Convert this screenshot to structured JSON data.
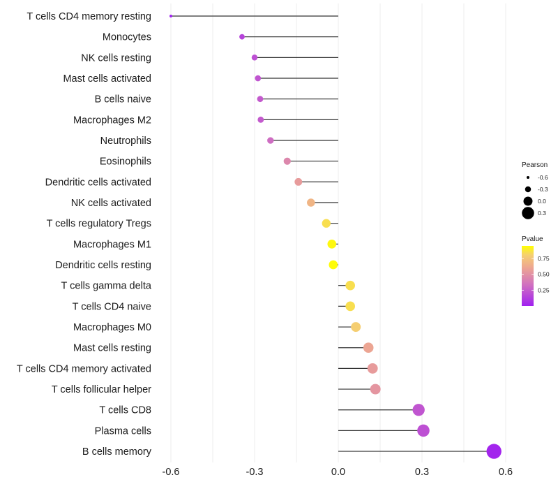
{
  "chart_data": {
    "type": "lollipop",
    "title": "",
    "xlabel": "",
    "ylabel": "",
    "xlim": [
      -0.62,
      0.62
    ],
    "xticks": [
      -0.6,
      -0.3,
      0.0,
      0.3,
      0.6
    ],
    "xtick_labels": [
      "-0.6",
      "-0.3",
      "0.0",
      "0.3",
      "0.6"
    ],
    "grid": true,
    "categories": [
      "T cells CD4 memory resting",
      "Monocytes",
      "NK cells resting",
      "Mast cells activated",
      "B cells naive",
      "Macrophages M2",
      "Neutrophils",
      "Eosinophils",
      "Dendritic cells activated",
      "NK cells activated",
      "T cells regulatory  Tregs ",
      "Macrophages M1",
      "Dendritic cells resting",
      "T cells gamma delta",
      "T cells CD4 naive",
      "Macrophages M0",
      "Mast cells resting",
      "T cells CD4 memory activated",
      "T cells follicular helper",
      "T cells CD8",
      "Plasma cells",
      "B cells memory"
    ],
    "pearson": [
      -0.6,
      -0.345,
      -0.3,
      -0.288,
      -0.28,
      -0.278,
      -0.243,
      -0.183,
      -0.143,
      -0.098,
      -0.043,
      -0.023,
      -0.018,
      0.043,
      0.043,
      0.063,
      0.108,
      0.123,
      0.133,
      0.288,
      0.305,
      0.558
    ],
    "pvalue": [
      0.0,
      0.15,
      0.2,
      0.22,
      0.24,
      0.24,
      0.32,
      0.45,
      0.55,
      0.68,
      0.85,
      0.93,
      0.94,
      0.85,
      0.85,
      0.8,
      0.6,
      0.55,
      0.52,
      0.22,
      0.2,
      0.02
    ],
    "legend": {
      "size_title": "Pearson",
      "size_entries": [
        "-0.6",
        "-0.3",
        "0.0",
        "0.3"
      ],
      "size_values": [
        -0.6,
        -0.3,
        0.0,
        0.3
      ],
      "color_title": "Pvalue",
      "color_ticks": [
        "0.25",
        "0.50",
        "0.75"
      ],
      "color_tick_values": [
        0.25,
        0.5,
        0.75
      ],
      "color_range": [
        0.0,
        0.95
      ],
      "color_low": "#a020f0",
      "color_high": "#ffff00",
      "placement": "right"
    }
  }
}
